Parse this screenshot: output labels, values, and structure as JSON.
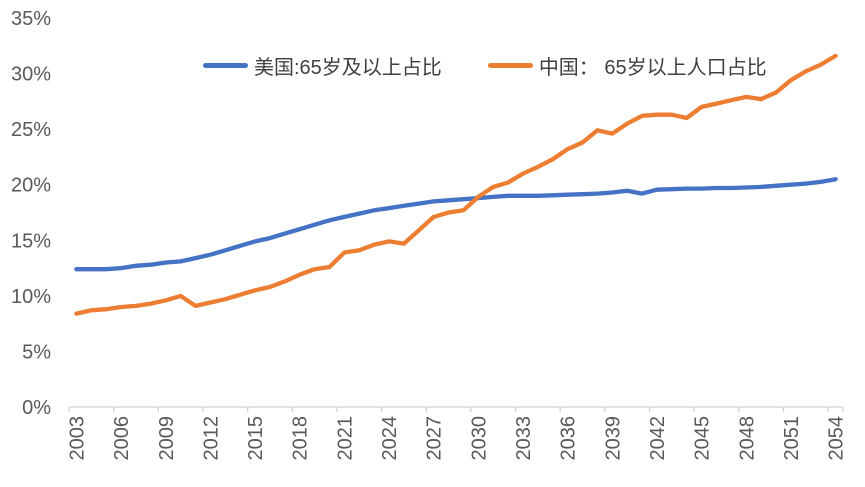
{
  "colors": {
    "background": "#ffffff",
    "us_line": "#4472C4",
    "china_line": "#ED7D31",
    "axis_line": "#D2D0D0",
    "tick_label": "#595959",
    "legend_text": "#404040"
  },
  "legend": {
    "items": [
      {
        "key": "us",
        "label": "美国:65岁及以上占比",
        "color": "#4472C4"
      },
      {
        "key": "china",
        "label": "中国： 65岁以上人口占比",
        "color": "#ED7D31"
      }
    ]
  },
  "chart_data": {
    "type": "line",
    "title": "",
    "xlabel": "",
    "ylabel": "",
    "grid": false,
    "legend_position": "top-center",
    "ylim": [
      0,
      35
    ],
    "y_tick_step": 5,
    "y_tick_labels": [
      "0%",
      "5%",
      "10%",
      "15%",
      "20%",
      "25%",
      "30%",
      "35%"
    ],
    "x_tick_labels": [
      "2003",
      "2006",
      "2009",
      "2012",
      "2015",
      "2018",
      "2021",
      "2024",
      "2027",
      "2030",
      "2033",
      "2036",
      "2039",
      "2042",
      "2045",
      "2048",
      "2051",
      "2054"
    ],
    "x": [
      2003,
      2004,
      2005,
      2006,
      2007,
      2008,
      2009,
      2010,
      2011,
      2012,
      2013,
      2014,
      2015,
      2016,
      2017,
      2018,
      2019,
      2020,
      2021,
      2022,
      2023,
      2024,
      2025,
      2026,
      2027,
      2028,
      2029,
      2030,
      2031,
      2032,
      2033,
      2034,
      2035,
      2036,
      2037,
      2038,
      2039,
      2040,
      2041,
      2042,
      2043,
      2044,
      2045,
      2046,
      2047,
      2048,
      2049,
      2050,
      2051,
      2052,
      2053,
      2054
    ],
    "series": [
      {
        "key": "us",
        "name": "美国:65岁及以上占比",
        "color": "#4472C4",
        "values": [
          12.4,
          12.4,
          12.4,
          12.5,
          12.7,
          12.8,
          13.0,
          13.1,
          13.4,
          13.7,
          14.1,
          14.5,
          14.9,
          15.2,
          15.6,
          16.0,
          16.4,
          16.8,
          17.1,
          17.4,
          17.7,
          17.9,
          18.1,
          18.3,
          18.5,
          18.6,
          18.7,
          18.8,
          18.9,
          19.0,
          19.0,
          19.0,
          19.05,
          19.1,
          19.15,
          19.2,
          19.3,
          19.45,
          19.2,
          19.55,
          19.6,
          19.65,
          19.65,
          19.7,
          19.7,
          19.75,
          19.8,
          19.9,
          20.0,
          20.1,
          20.25,
          20.5
        ]
      },
      {
        "key": "china",
        "name": "中国： 65岁以上人口占比",
        "color": "#ED7D31",
        "values": [
          8.4,
          8.7,
          8.8,
          9.0,
          9.1,
          9.3,
          9.6,
          10.0,
          9.1,
          9.4,
          9.7,
          10.1,
          10.5,
          10.8,
          11.3,
          11.9,
          12.4,
          12.6,
          13.9,
          14.1,
          14.6,
          14.9,
          14.7,
          15.9,
          17.1,
          17.5,
          17.7,
          18.9,
          19.8,
          20.2,
          21.0,
          21.6,
          22.3,
          23.2,
          23.8,
          24.9,
          24.6,
          25.5,
          26.2,
          26.3,
          26.3,
          26.0,
          27.0,
          27.3,
          27.6,
          27.9,
          27.7,
          28.3,
          29.4,
          30.2,
          30.8,
          31.6
        ]
      }
    ]
  }
}
